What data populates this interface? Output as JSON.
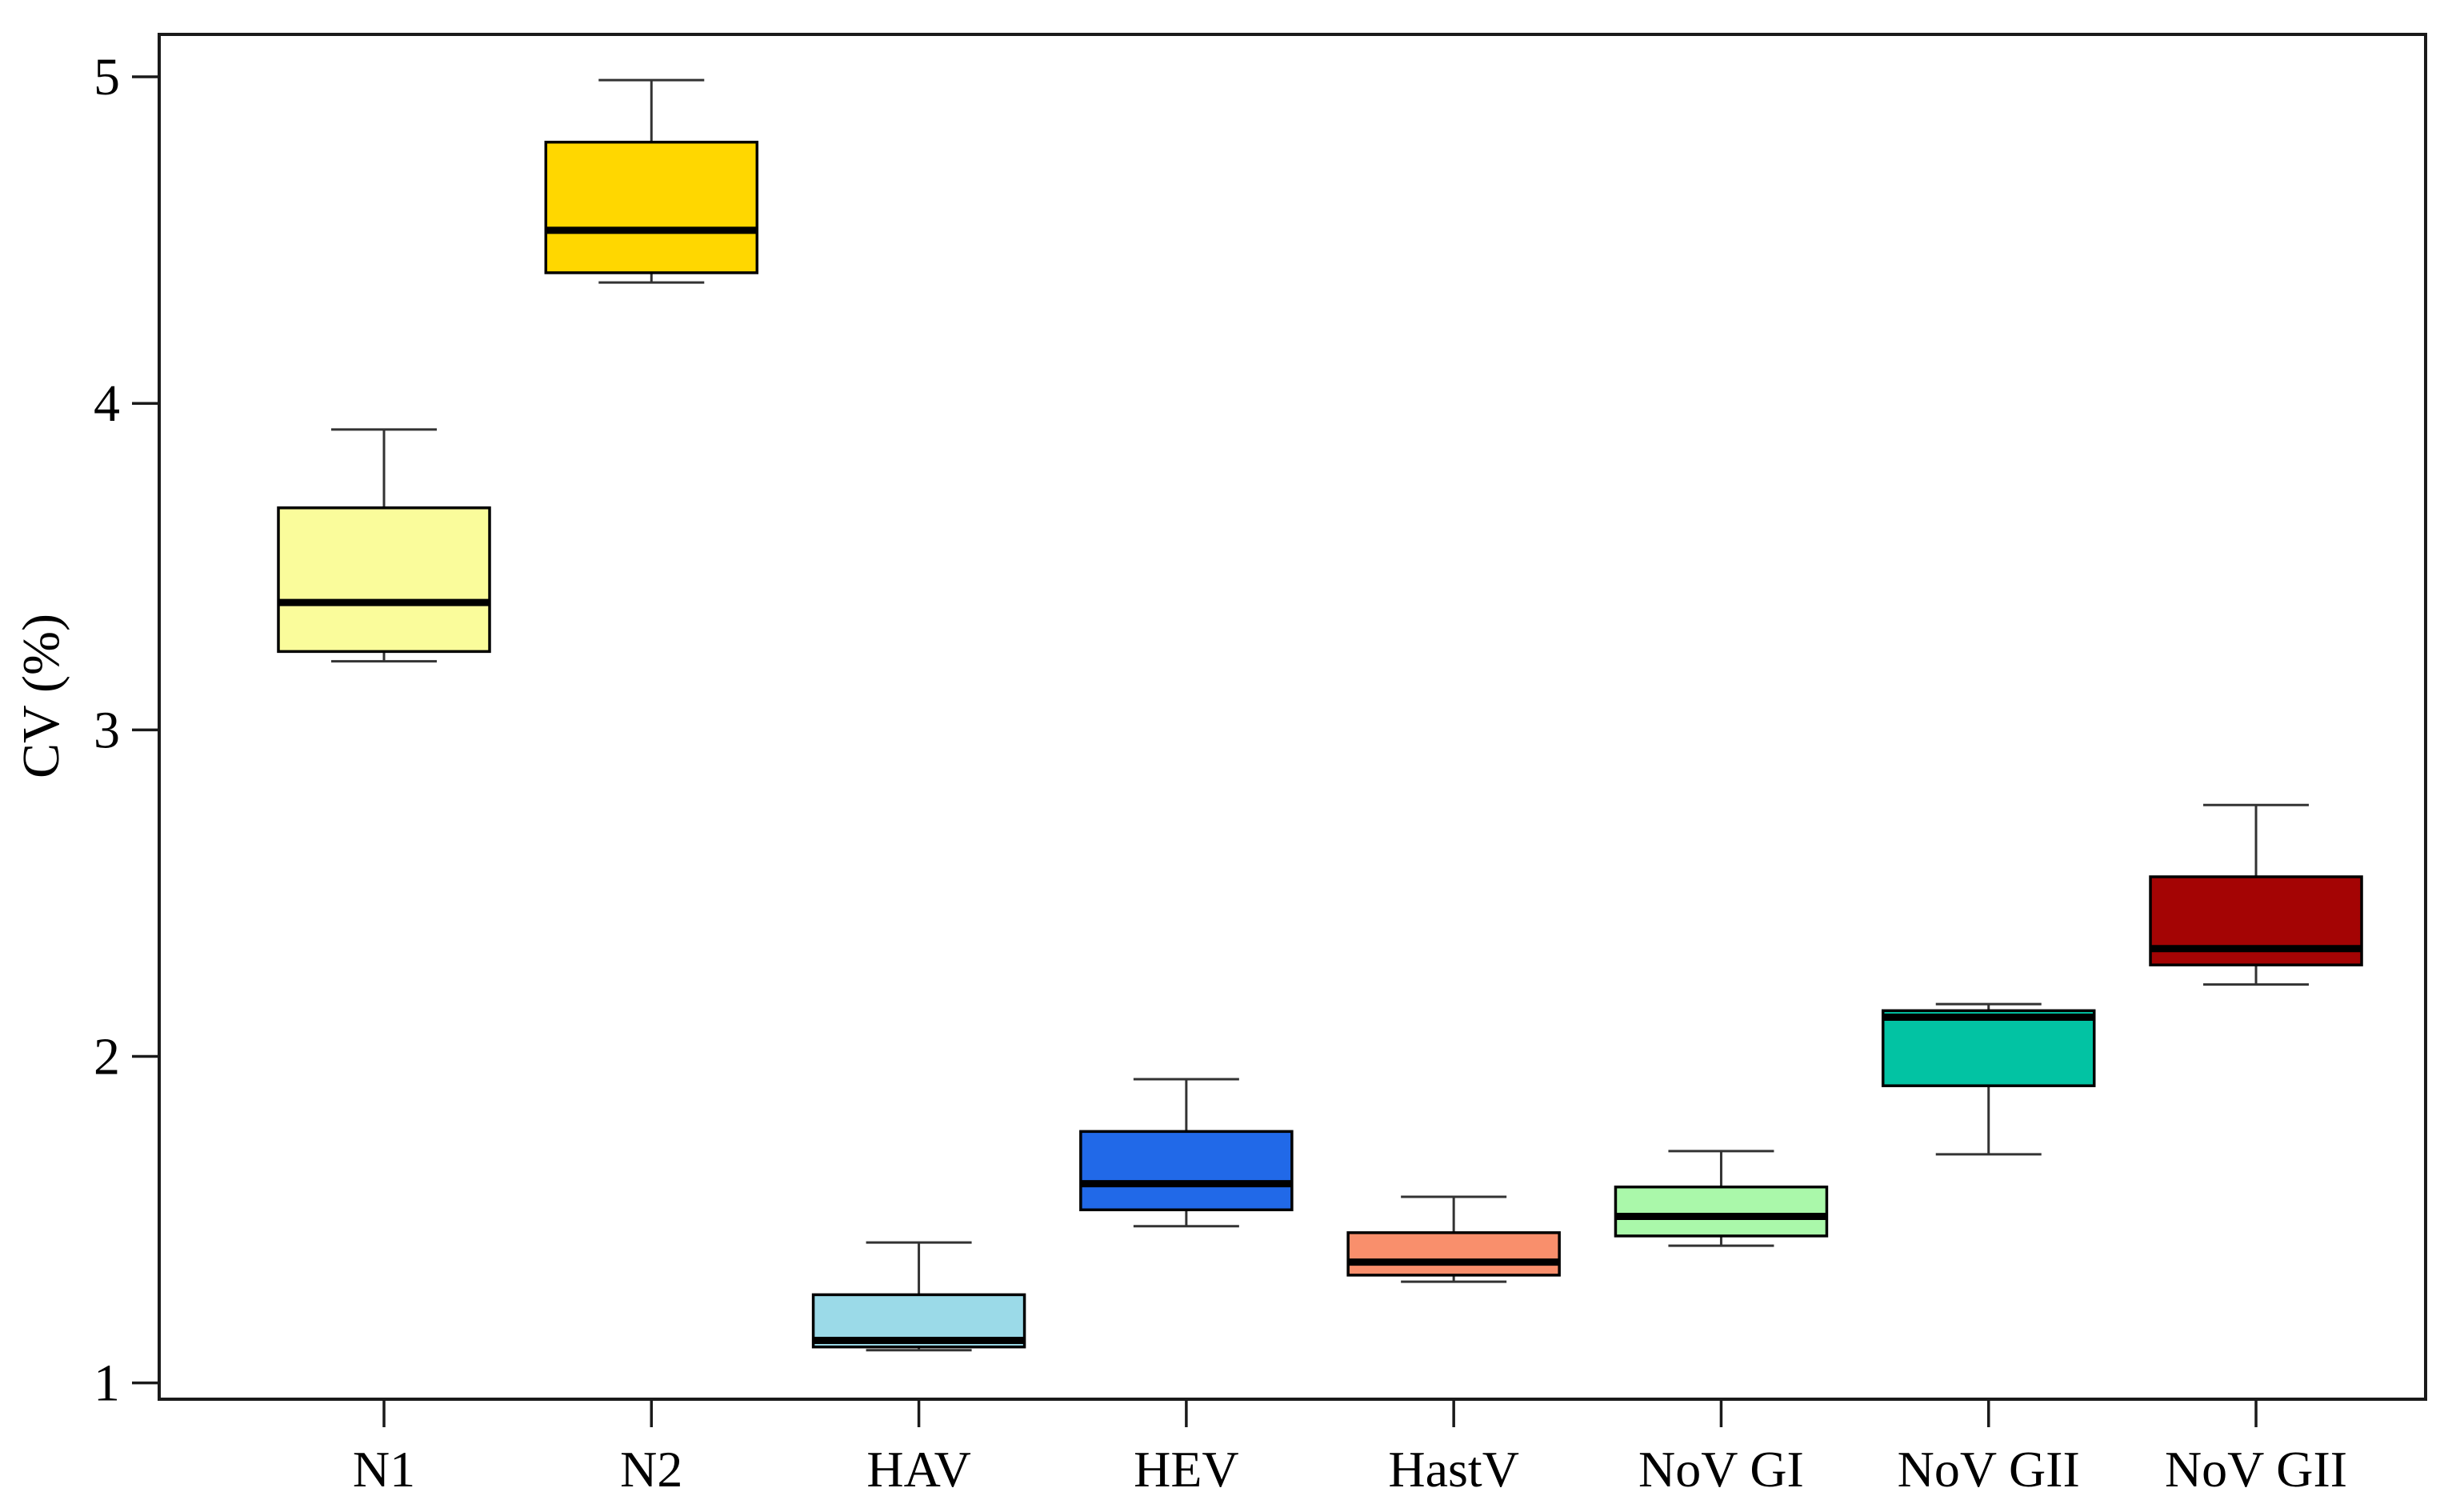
{
  "figure": {
    "background": "#ffffff",
    "axis_color": "#1a1a1a",
    "whisker_color": "#333333",
    "median_color": "#000000"
  },
  "chart_data": {
    "type": "boxplot",
    "title": "",
    "xlabel": "",
    "ylabel": "CV (%)",
    "ylim": [
      0.95,
      5.13
    ],
    "yticks": [
      1,
      2,
      3,
      4,
      5
    ],
    "grid": false,
    "legend": false,
    "categories": [
      "N1",
      "N2",
      "HAV",
      "HEV",
      "HastV",
      "NoV GI",
      "NoV GII",
      "NoV GII"
    ],
    "boxes": [
      {
        "label": "N1",
        "color": "#FAFC9B",
        "min": 3.21,
        "q1": 3.24,
        "median": 3.39,
        "q3": 3.68,
        "max": 3.92
      },
      {
        "label": "N2",
        "color": "#FFD700",
        "min": 4.37,
        "q1": 4.4,
        "median": 4.53,
        "q3": 4.8,
        "max": 4.99
      },
      {
        "label": "HAV",
        "color": "#9BDAE8",
        "min": 1.1,
        "q1": 1.11,
        "median": 1.13,
        "q3": 1.27,
        "max": 1.43
      },
      {
        "label": "HEV",
        "color": "#2169E8",
        "min": 1.48,
        "q1": 1.53,
        "median": 1.61,
        "q3": 1.77,
        "max": 1.93
      },
      {
        "label": "HastV",
        "color": "#F98F6C",
        "min": 1.31,
        "q1": 1.33,
        "median": 1.37,
        "q3": 1.46,
        "max": 1.57
      },
      {
        "label": "NoV GI",
        "color": "#AAF8AA",
        "min": 1.42,
        "q1": 1.45,
        "median": 1.51,
        "q3": 1.6,
        "max": 1.71
      },
      {
        "label": "NoV GII",
        "color": "#02C3A3",
        "min": 1.7,
        "q1": 1.91,
        "median": 2.12,
        "q3": 2.14,
        "max": 2.16
      },
      {
        "label": "NoV GII",
        "color": "#A40404",
        "min": 2.22,
        "q1": 2.28,
        "median": 2.33,
        "q3": 2.55,
        "max": 2.77
      }
    ]
  }
}
